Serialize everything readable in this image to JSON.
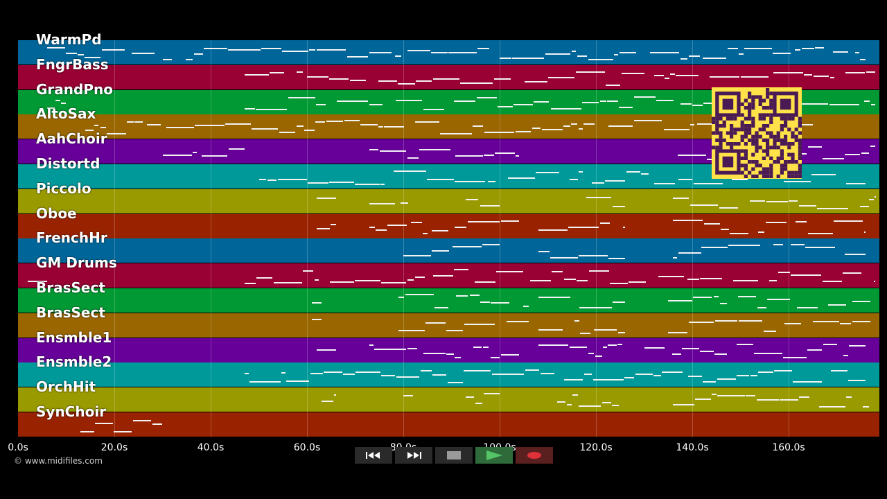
{
  "tracks": [
    {
      "name": "WarmPd",
      "color": "#006699"
    },
    {
      "name": "FngrBass",
      "color": "#990033"
    },
    {
      "name": "GrandPno",
      "color": "#009933"
    },
    {
      "name": "AltoSax",
      "color": "#996600"
    },
    {
      "name": "AahChoir",
      "color": "#660099"
    },
    {
      "name": "Distortd",
      "color": "#009999"
    },
    {
      "name": "Piccolo",
      "color": "#999900"
    },
    {
      "name": "Oboe",
      "color": "#992200"
    },
    {
      "name": "FrenchHr",
      "color": "#006699"
    },
    {
      "name": "GM Drums",
      "color": "#990033"
    },
    {
      "name": "BrasSect",
      "color": "#009933"
    },
    {
      "name": "BrasSect",
      "color": "#996600"
    },
    {
      "name": "Ensmble1",
      "color": "#660099"
    },
    {
      "name": "Ensmble2",
      "color": "#009999"
    },
    {
      "name": "OrchHit",
      "color": "#999900"
    },
    {
      "name": "SynChoir",
      "color": "#992200"
    }
  ],
  "timeline": {
    "ticks": [
      "0.0s",
      "20.0s",
      "40.0s",
      "60.0s",
      "80.0s",
      "100.0s",
      "120.0s",
      "140.0s",
      "160.0s"
    ],
    "max_seconds": 179
  },
  "copyright": "© www.midifiles.com",
  "transport": {
    "rewind_icon": "rewind-icon",
    "forward_icon": "fast-forward-icon",
    "stop_icon": "stop-icon",
    "play_icon": "play-icon",
    "record_icon": "record-icon"
  },
  "qr_icon": "qr-code-icon"
}
